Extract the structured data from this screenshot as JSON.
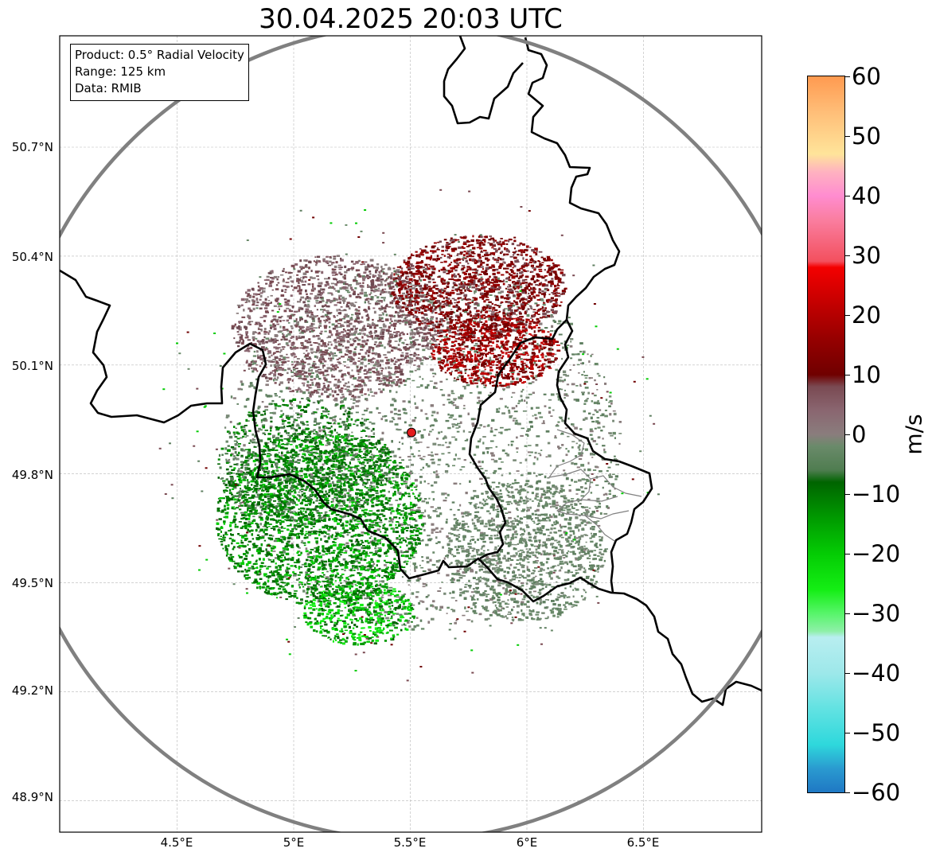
{
  "title": "30.04.2025 20:03 UTC",
  "info_box": {
    "product": "Product: 0.5° Radial Velocity",
    "range": "Range: 125 km",
    "data": "Data: RMIB"
  },
  "map": {
    "lon_ticks": [
      "4.5°E",
      "5°E",
      "5.5°E",
      "6°E",
      "6.5°E"
    ],
    "lat_ticks": [
      "50.7°N",
      "50.4°N",
      "50.1°N",
      "49.8°N",
      "49.5°N",
      "49.2°N",
      "48.9°N"
    ],
    "radar_site": {
      "lon": 5.505,
      "lat": 49.914
    },
    "range_ring_km": 125,
    "colors": {
      "border": "#000000",
      "range_ring": "#808080",
      "site_marker": "#e31a1c",
      "grid": "#b0b0b0"
    }
  },
  "colorbar": {
    "label": "m/s",
    "ticks": [
      "60",
      "50",
      "40",
      "30",
      "20",
      "10",
      "0",
      "−10",
      "−20",
      "−30",
      "−40",
      "−50",
      "−60"
    ],
    "min": -60,
    "max": 60,
    "stops": [
      {
        "v": -60,
        "c": "#1f78c4"
      },
      {
        "v": -56,
        "c": "#2a9ad0"
      },
      {
        "v": -52,
        "c": "#2ed8dc"
      },
      {
        "v": -46,
        "c": "#62e2e2"
      },
      {
        "v": -40,
        "c": "#9de8ea"
      },
      {
        "v": -34,
        "c": "#b8eef0"
      },
      {
        "v": -33,
        "c": "#8ef0a8"
      },
      {
        "v": -30,
        "c": "#57f56a"
      },
      {
        "v": -26,
        "c": "#14ee14"
      },
      {
        "v": -20,
        "c": "#04cc04"
      },
      {
        "v": -14,
        "c": "#009a00"
      },
      {
        "v": -8,
        "c": "#006400"
      },
      {
        "v": -6,
        "c": "#4f7d50"
      },
      {
        "v": -2,
        "c": "#6a8a6a"
      },
      {
        "v": 0,
        "c": "#8a7d7d"
      },
      {
        "v": 4,
        "c": "#8a6670"
      },
      {
        "v": 8,
        "c": "#7a4a52"
      },
      {
        "v": 10,
        "c": "#700000"
      },
      {
        "v": 16,
        "c": "#960000"
      },
      {
        "v": 22,
        "c": "#c40000"
      },
      {
        "v": 28,
        "c": "#f40000"
      },
      {
        "v": 29,
        "c": "#f3505e"
      },
      {
        "v": 36,
        "c": "#fa7ea0"
      },
      {
        "v": 40,
        "c": "#ff8cd0"
      },
      {
        "v": 44,
        "c": "#ffb2c0"
      },
      {
        "v": 47,
        "c": "#ffe49a"
      },
      {
        "v": 54,
        "c": "#ffbe78"
      },
      {
        "v": 60,
        "c": "#ff9a50"
      }
    ]
  }
}
